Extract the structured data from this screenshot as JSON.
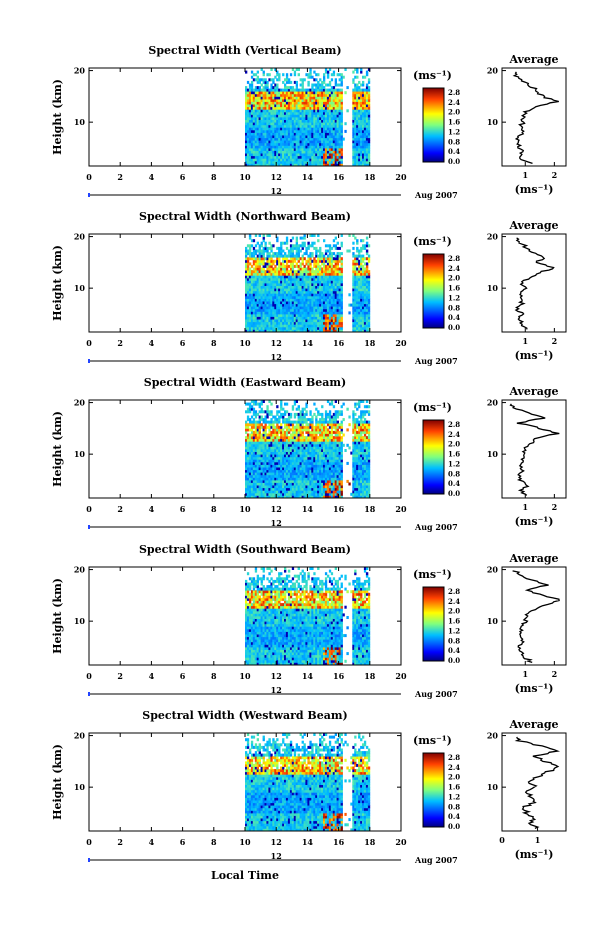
{
  "figure": {
    "date_label": "Aug 2007",
    "day_marker": "12",
    "xlabel_bottom": "Local Time"
  },
  "chart_data": [
    {
      "type": "heatmap",
      "title": "Spectral Width (Vertical Beam)",
      "ylabel": "Height (km)",
      "xticks": [
        "0",
        "2",
        "4",
        "6",
        "8",
        "10",
        "12",
        "14",
        "16",
        "18",
        "20"
      ],
      "xlim": [
        0,
        20
      ],
      "ylim": [
        1.5,
        20.5
      ],
      "yticks": [
        "10",
        "20"
      ],
      "colorbar_unit": "(ms⁻¹)",
      "colorbar_ticks": [
        "0.0",
        "0.4",
        "0.8",
        "1.2",
        "1.6",
        "2.0",
        "2.4",
        "2.8"
      ],
      "data_time_range": [
        10,
        18
      ],
      "profile": {
        "title": "Average",
        "xlabel": "(ms⁻¹)",
        "xticks": [
          "1",
          "2"
        ],
        "xlim": [
          0.2,
          2.4
        ],
        "heights": [
          2,
          3,
          4,
          5,
          6,
          7,
          8,
          9,
          10,
          11,
          12,
          13,
          14,
          15,
          16,
          17,
          18,
          19,
          20
        ],
        "values": [
          1.2,
          0.8,
          0.9,
          0.8,
          0.7,
          0.8,
          0.9,
          0.85,
          0.9,
          0.95,
          1.0,
          1.3,
          2.1,
          1.6,
          1.4,
          1.2,
          0.9,
          0.7,
          0.6
        ]
      }
    },
    {
      "type": "heatmap",
      "title": "Spectral Width (Northward Beam)",
      "ylabel": "Height (km)",
      "xticks": [
        "0",
        "2",
        "4",
        "6",
        "8",
        "10",
        "12",
        "14",
        "16",
        "18",
        "20"
      ],
      "xlim": [
        0,
        20
      ],
      "ylim": [
        1.5,
        20.5
      ],
      "yticks": [
        "10",
        "20"
      ],
      "colorbar_unit": "(ms⁻¹)",
      "colorbar_ticks": [
        "0.0",
        "0.4",
        "0.8",
        "1.2",
        "1.6",
        "2.0",
        "2.4",
        "2.8"
      ],
      "data_time_range": [
        10,
        18
      ],
      "profile": {
        "title": "Average",
        "xlabel": "(ms⁻¹)",
        "xticks": [
          "1",
          "2"
        ],
        "xlim": [
          0.2,
          2.4
        ],
        "heights": [
          2,
          3,
          4,
          5,
          6,
          7,
          8,
          9,
          10,
          11,
          12,
          13,
          14,
          15,
          16,
          17,
          18,
          19,
          20
        ],
        "values": [
          1.1,
          0.9,
          0.8,
          0.9,
          0.7,
          0.9,
          0.8,
          0.9,
          1.0,
          0.9,
          1.1,
          1.5,
          2.0,
          1.3,
          1.7,
          1.2,
          1.0,
          0.8,
          0.6
        ]
      }
    },
    {
      "type": "heatmap",
      "title": "Spectral Width (Eastward Beam)",
      "ylabel": "Height (km)",
      "xticks": [
        "0",
        "2",
        "4",
        "6",
        "8",
        "10",
        "12",
        "14",
        "16",
        "18",
        "20"
      ],
      "xlim": [
        0,
        20
      ],
      "ylim": [
        1.5,
        20.5
      ],
      "yticks": [
        "10",
        "20"
      ],
      "colorbar_unit": "(ms⁻¹)",
      "colorbar_ticks": [
        "0.0",
        "0.4",
        "0.8",
        "1.2",
        "1.6",
        "2.0",
        "2.4",
        "2.8"
      ],
      "data_time_range": [
        10,
        18
      ],
      "profile": {
        "title": "Average",
        "xlabel": "(ms⁻¹)",
        "xticks": [
          "1",
          "2"
        ],
        "xlim": [
          0.2,
          2.4
        ],
        "heights": [
          2,
          3,
          4,
          5,
          6,
          7,
          8,
          9,
          10,
          11,
          12,
          13,
          14,
          15,
          16,
          17,
          18,
          19,
          20
        ],
        "values": [
          1.0,
          0.9,
          1.1,
          0.8,
          0.8,
          0.9,
          0.85,
          0.9,
          1.0,
          1.0,
          1.2,
          1.4,
          2.1,
          1.5,
          0.8,
          1.6,
          1.1,
          0.6,
          0.4
        ]
      }
    },
    {
      "type": "heatmap",
      "title": "Spectral Width (Southward Beam)",
      "ylabel": "Height (km)",
      "xticks": [
        "0",
        "2",
        "4",
        "6",
        "8",
        "10",
        "12",
        "14",
        "16",
        "18",
        "20"
      ],
      "xlim": [
        0,
        20
      ],
      "ylim": [
        1.5,
        20.5
      ],
      "yticks": [
        "10",
        "20"
      ],
      "colorbar_unit": "(ms⁻¹)",
      "colorbar_ticks": [
        "0.0",
        "0.4",
        "0.8",
        "1.2",
        "1.6",
        "2.0",
        "2.4",
        "2.8"
      ],
      "data_time_range": [
        10,
        18
      ],
      "profile": {
        "title": "Average",
        "xlabel": "(ms⁻¹)",
        "xticks": [
          "1",
          "2"
        ],
        "xlim": [
          0.2,
          2.4
        ],
        "heights": [
          2,
          3,
          4,
          5,
          6,
          7,
          8,
          9,
          10,
          11,
          12,
          13,
          14,
          15,
          16,
          17,
          18,
          19,
          20
        ],
        "values": [
          1.2,
          1.0,
          0.9,
          0.8,
          0.9,
          0.8,
          0.9,
          0.8,
          1.0,
          1.0,
          1.2,
          1.6,
          2.2,
          1.7,
          1.0,
          1.8,
          1.2,
          0.8,
          0.6
        ]
      }
    },
    {
      "type": "heatmap",
      "title": "Spectral Width (Westward Beam)",
      "ylabel": "Height (km)",
      "xticks": [
        "0",
        "2",
        "4",
        "6",
        "8",
        "10",
        "12",
        "14",
        "16",
        "18",
        "20"
      ],
      "xlim": [
        0,
        20
      ],
      "ylim": [
        1.5,
        20.5
      ],
      "yticks": [
        "10",
        "20"
      ],
      "colorbar_unit": "(ms⁻¹)",
      "colorbar_ticks": [
        "0.0",
        "0.4",
        "0.8",
        "1.2",
        "1.6",
        "2.0",
        "2.4",
        "2.8"
      ],
      "data_time_range": [
        10,
        18
      ],
      "profile": {
        "title": "Average",
        "xlabel": "(ms⁻¹)",
        "xticks": [
          "0",
          "1"
        ],
        "xlim": [
          0,
          1.8
        ],
        "heights": [
          2,
          3,
          4,
          5,
          6,
          7,
          8,
          9,
          10,
          11,
          12,
          13,
          14,
          15,
          16,
          17,
          18,
          19,
          20
        ],
        "values": [
          1.0,
          0.8,
          0.9,
          0.7,
          0.6,
          0.9,
          0.8,
          0.7,
          0.9,
          0.8,
          1.0,
          1.3,
          1.6,
          1.2,
          0.9,
          1.5,
          1.1,
          0.5,
          0.3
        ]
      }
    }
  ]
}
